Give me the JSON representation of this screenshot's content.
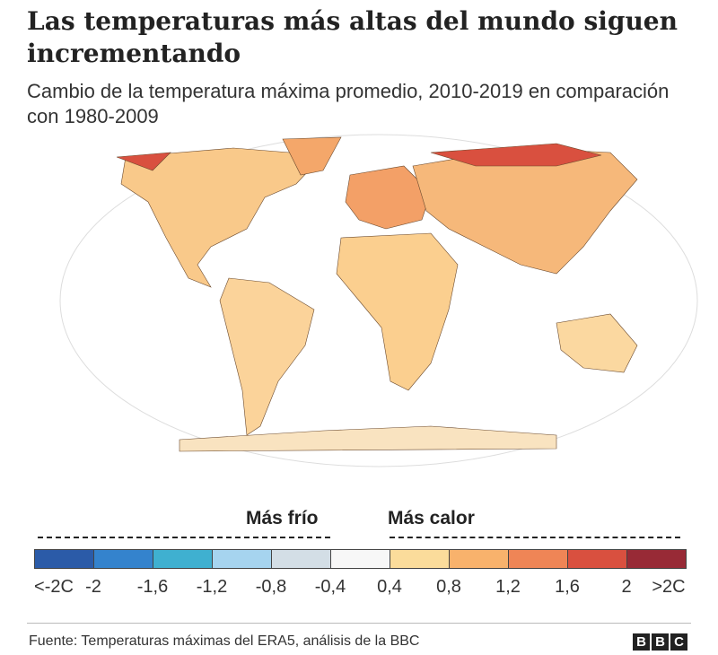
{
  "header": {
    "title": "Las temperaturas más altas del mundo siguen incrementando",
    "subtitle": "Cambio de la temperatura máxima promedio, 2010-2019 en comparación con 1980-2009"
  },
  "legend": {
    "colder_label": "Más frío",
    "warmer_label": "Más calor",
    "colors": [
      "#2b5ba8",
      "#3483cd",
      "#3fb0d0",
      "#a6d4ef",
      "#d3dee6",
      "#f7f7f7",
      "#fbdc9b",
      "#f8b26c",
      "#ef8556",
      "#d9503f",
      "#982a36"
    ],
    "ticks": [
      "<-2C",
      "-2",
      "-1,6",
      "-1,2",
      "-0,8",
      "-0,4",
      "0,4",
      "0,8",
      "1,2",
      "1,6",
      "2",
      ">2C"
    ]
  },
  "footer": {
    "source": "Fuente: Temperaturas máximas del ERA5, análisis de la BBC",
    "logo": [
      "B",
      "B",
      "C"
    ]
  }
}
